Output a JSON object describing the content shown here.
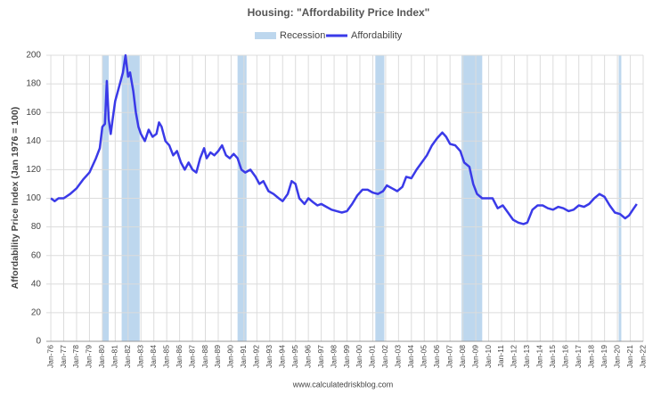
{
  "chart_data": {
    "type": "line",
    "title": "Housing: \"Affordability Price Index\"",
    "y_label": "Affordability Price Index (Jan 1976 = 100)",
    "source": "www.calculatedriskblog.com",
    "xlim": [
      1975.65,
      2022.0
    ],
    "ylim": [
      0,
      200
    ],
    "yticks": [
      0,
      20,
      40,
      60,
      80,
      100,
      120,
      140,
      160,
      180,
      200
    ],
    "xticks": [
      {
        "value": 1976,
        "label": "Jan-76"
      },
      {
        "value": 1977,
        "label": "Jan-77"
      },
      {
        "value": 1978,
        "label": "Jan-78"
      },
      {
        "value": 1979,
        "label": "Jan-79"
      },
      {
        "value": 1980,
        "label": "Jan-80"
      },
      {
        "value": 1981,
        "label": "Jan-81"
      },
      {
        "value": 1982,
        "label": "Jan-82"
      },
      {
        "value": 1983,
        "label": "Jan-83"
      },
      {
        "value": 1984,
        "label": "Jan-84"
      },
      {
        "value": 1985,
        "label": "Jan-85"
      },
      {
        "value": 1986,
        "label": "Jan-86"
      },
      {
        "value": 1987,
        "label": "Jan-87"
      },
      {
        "value": 1988,
        "label": "Jan-88"
      },
      {
        "value": 1989,
        "label": "Jan-89"
      },
      {
        "value": 1990,
        "label": "Jan-90"
      },
      {
        "value": 1991,
        "label": "Jan-91"
      },
      {
        "value": 1992,
        "label": "Jan-92"
      },
      {
        "value": 1993,
        "label": "Jan-93"
      },
      {
        "value": 1994,
        "label": "Jan-94"
      },
      {
        "value": 1995,
        "label": "Jan-95"
      },
      {
        "value": 1996,
        "label": "Jan-96"
      },
      {
        "value": 1997,
        "label": "Jan-97"
      },
      {
        "value": 1998,
        "label": "Jan-98"
      },
      {
        "value": 1999,
        "label": "Jan-99"
      },
      {
        "value": 2000,
        "label": "Jan-00"
      },
      {
        "value": 2001,
        "label": "Jan-01"
      },
      {
        "value": 2002,
        "label": "Jan-02"
      },
      {
        "value": 2003,
        "label": "Jan-03"
      },
      {
        "value": 2004,
        "label": "Jan-04"
      },
      {
        "value": 2005,
        "label": "Jan-05"
      },
      {
        "value": 2006,
        "label": "Jan-06"
      },
      {
        "value": 2007,
        "label": "Jan-07"
      },
      {
        "value": 2008,
        "label": "Jan-08"
      },
      {
        "value": 2009,
        "label": "Jan-09"
      },
      {
        "value": 2010,
        "label": "Jan-10"
      },
      {
        "value": 2011,
        "label": "Jan-11"
      },
      {
        "value": 2012,
        "label": "Jan-12"
      },
      {
        "value": 2013,
        "label": "Jan-13"
      },
      {
        "value": 2014,
        "label": "Jan-14"
      },
      {
        "value": 2015,
        "label": "Jan-15"
      },
      {
        "value": 2016,
        "label": "Jan-16"
      },
      {
        "value": 2017,
        "label": "Jan-17"
      },
      {
        "value": 2018,
        "label": "Jan-18"
      },
      {
        "value": 2019,
        "label": "Jan-19"
      },
      {
        "value": 2020,
        "label": "Jan-20"
      },
      {
        "value": 2021,
        "label": "Jan-21"
      },
      {
        "value": 2022,
        "label": "Jan-22"
      }
    ],
    "grid": true,
    "bands": {
      "name": "Recession",
      "color": "#bdd7ee",
      "ranges": [
        [
          1980.0,
          1980.5
        ],
        [
          1981.5,
          1982.9
        ],
        [
          1990.5,
          1991.2
        ],
        [
          2001.2,
          2001.9
        ],
        [
          2007.9,
          2009.5
        ],
        [
          2020.1,
          2020.3
        ]
      ]
    },
    "x": [
      1976.0,
      1976.3,
      1976.6,
      1977.0,
      1977.5,
      1978.0,
      1978.5,
      1979.0,
      1979.5,
      1979.8,
      1980.0,
      1980.2,
      1980.35,
      1980.5,
      1980.65,
      1980.8,
      1981.0,
      1981.3,
      1981.6,
      1981.8,
      1982.0,
      1982.15,
      1982.4,
      1982.6,
      1982.8,
      1983.0,
      1983.3,
      1983.6,
      1983.9,
      1984.2,
      1984.4,
      1984.6,
      1984.9,
      1985.2,
      1985.5,
      1985.8,
      1986.1,
      1986.4,
      1986.7,
      1987.0,
      1987.3,
      1987.6,
      1987.9,
      1988.1,
      1988.4,
      1988.7,
      1989.0,
      1989.3,
      1989.6,
      1989.9,
      1990.2,
      1990.5,
      1990.8,
      1991.1,
      1991.5,
      1991.9,
      1992.2,
      1992.5,
      1992.9,
      1993.3,
      1993.7,
      1994.0,
      1994.4,
      1994.7,
      1995.0,
      1995.3,
      1995.7,
      1996.0,
      1996.4,
      1996.7,
      1997.0,
      1997.4,
      1997.8,
      1998.2,
      1998.6,
      1999.0,
      1999.4,
      1999.8,
      2000.2,
      2000.6,
      2001.0,
      2001.4,
      2001.8,
      2002.1,
      2002.5,
      2002.9,
      2003.3,
      2003.6,
      2004.0,
      2004.4,
      2004.8,
      2005.2,
      2005.6,
      2006.0,
      2006.4,
      2006.7,
      2007.0,
      2007.4,
      2007.8,
      2008.1,
      2008.5,
      2008.8,
      2009.1,
      2009.5,
      2009.9,
      2010.3,
      2010.7,
      2011.1,
      2011.5,
      2011.9,
      2012.3,
      2012.7,
      2013.0,
      2013.4,
      2013.8,
      2014.2,
      2014.6,
      2015.0,
      2015.4,
      2015.8,
      2016.2,
      2016.6,
      2017.0,
      2017.4,
      2017.8,
      2018.2,
      2018.6,
      2019.0,
      2019.4,
      2019.8,
      2020.2,
      2020.6,
      2020.9,
      2021.2,
      2021.5
    ],
    "series": [
      {
        "name": "Affordability",
        "color": "#3a3ae8",
        "values": [
          100,
          98,
          100,
          100,
          103,
          107,
          113,
          118,
          128,
          135,
          150,
          152,
          182,
          155,
          145,
          155,
          168,
          178,
          188,
          200,
          185,
          188,
          175,
          160,
          150,
          145,
          140,
          148,
          143,
          145,
          153,
          150,
          140,
          137,
          130,
          133,
          125,
          120,
          125,
          120,
          118,
          128,
          135,
          128,
          132,
          130,
          133,
          137,
          130,
          128,
          131,
          128,
          120,
          118,
          120,
          115,
          110,
          112,
          105,
          103,
          100,
          98,
          103,
          112,
          110,
          100,
          96,
          100,
          97,
          95,
          96,
          94,
          92,
          91,
          90,
          91,
          96,
          102,
          106,
          106,
          104,
          103,
          105,
          109,
          107,
          105,
          108,
          115,
          114,
          120,
          125,
          130,
          137,
          142,
          146,
          143,
          138,
          137,
          133,
          125,
          122,
          110,
          103,
          100,
          100,
          100,
          93,
          95,
          90,
          85,
          83,
          82,
          83,
          92,
          95,
          95,
          93,
          92,
          94,
          93,
          91,
          92,
          95,
          94,
          96,
          100,
          103,
          101,
          95,
          90,
          89,
          86,
          88,
          92,
          96
        ]
      }
    ]
  }
}
